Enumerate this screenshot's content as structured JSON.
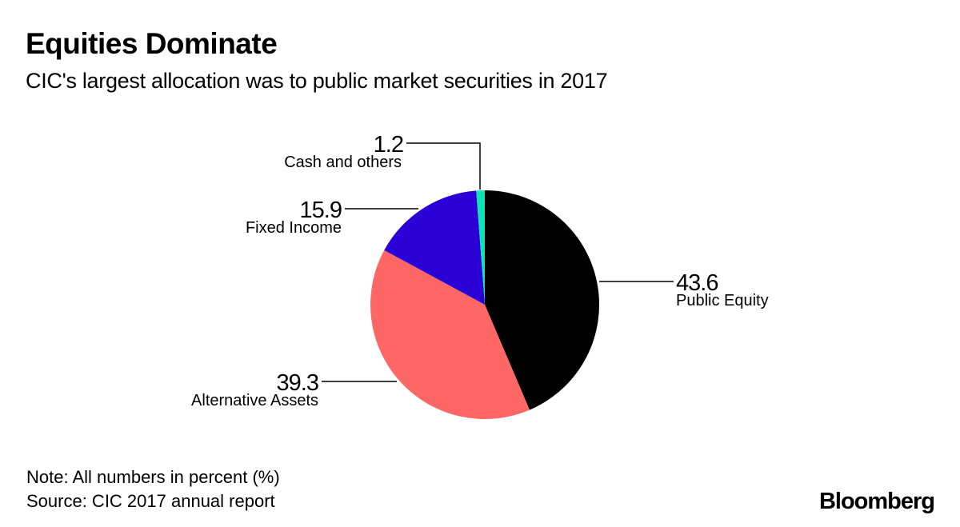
{
  "chart_data": {
    "type": "pie",
    "title": "Equities Dominate",
    "subtitle": "CIC's largest allocation was to public market securities in 2017",
    "unit": "percent",
    "start": "12 o'clock, clockwise",
    "slices": [
      {
        "label": "Public Equity",
        "value": 43.6,
        "value_text": "43.6",
        "color": "#000000",
        "label_side": "right"
      },
      {
        "label": "Alternative Assets",
        "value": 39.3,
        "value_text": "39.3",
        "color": "#ff6666",
        "label_side": "left"
      },
      {
        "label": "Fixed Income",
        "value": 15.9,
        "value_text": "15.9",
        "color": "#2a00d6",
        "label_side": "left"
      },
      {
        "label": "Cash and others",
        "value": 1.2,
        "value_text": "1.2",
        "color": "#0fe3b5",
        "label_side": "top-left"
      }
    ]
  },
  "footer": {
    "note": "Note: All numbers in percent (%)",
    "source": "Source: CIC 2017 annual report",
    "brand": "Bloomberg"
  }
}
